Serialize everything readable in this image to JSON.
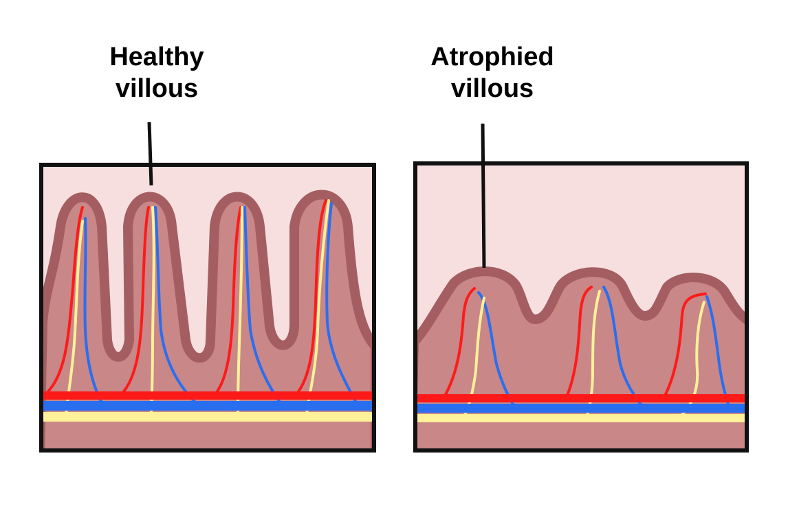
{
  "labels": {
    "healthy_line1": "Healthy",
    "healthy_line2": "villous",
    "atrophied_line1": "Atrophied",
    "atrophied_line2": "villous"
  },
  "colors": {
    "lumen": "#f7dfdf",
    "tissue": "#c98787",
    "outline": "#a45e62",
    "artery": "#ff1a1a",
    "vein": "#2a6ef0",
    "lacteal": "#fff09a",
    "frame": "#111111"
  }
}
